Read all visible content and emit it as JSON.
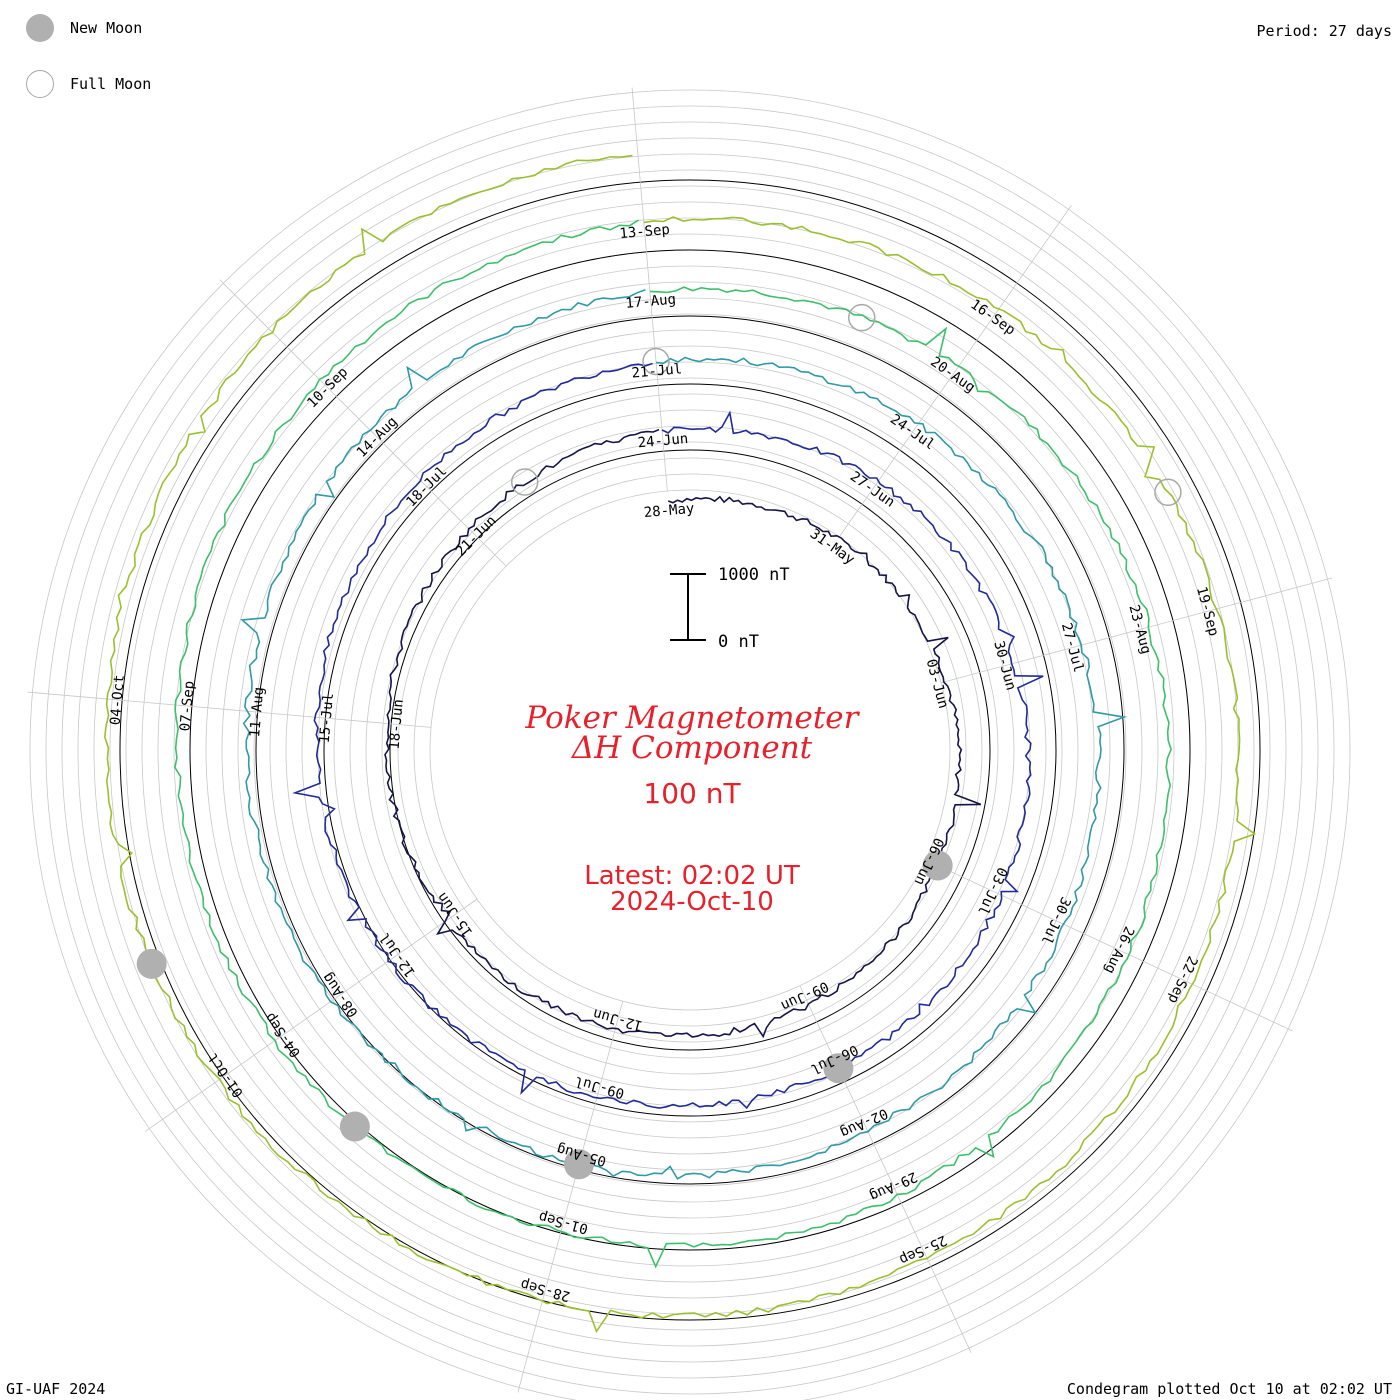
{
  "legend": {
    "new_moon_label": "New Moon",
    "full_moon_label": "Full Moon",
    "new_moon_color": "#b0b0b0",
    "full_moon_color": "#a8a8a8"
  },
  "period_label": "Period: 27 days",
  "credit": "GI-UAF 2024",
  "plotted_label": "Condegram plotted Oct 10 at 02:02 UT",
  "center": {
    "title_line1": "Poker Magnetometer",
    "title_line2": "ΔH Component",
    "scale_label": "100 nT",
    "latest_line1": "Latest: 02:02 UT",
    "latest_line2": "2024-Oct-10",
    "scale_bar_top": "1000 nT",
    "scale_bar_bottom": "0 nT",
    "accent_color": "#e8202a"
  },
  "chart_data": {
    "type": "line",
    "subtype": "spiral condegram",
    "period_days": 27,
    "scale_bar_nT": [
      0,
      1000
    ],
    "date_labels": [
      "28-May",
      "31-May",
      "03-Jun",
      "06-Jun",
      "09-Jun",
      "12-Jun",
      "15-Jun",
      "18-Jun",
      "21-Jun",
      "24-Jun",
      "27-Jun",
      "30-Jun",
      "03-Jul",
      "06-Jul",
      "09-Jul",
      "12-Jul",
      "15-Jul",
      "18-Jul",
      "21-Jul",
      "24-Jul",
      "27-Jul",
      "30-Jul",
      "02-Aug",
      "05-Aug",
      "08-Aug",
      "11-Aug",
      "14-Aug",
      "17-Aug",
      "20-Aug",
      "23-Aug",
      "26-Aug",
      "29-Aug",
      "01-Sep",
      "04-Sep",
      "07-Sep",
      "10-Sep",
      "13-Sep",
      "16-Sep",
      "19-Sep",
      "22-Sep",
      "25-Sep",
      "28-Sep",
      "01-Oct",
      "04-Oct"
    ],
    "series": [
      {
        "color": "#14144a",
        "start": "28-May"
      },
      {
        "color": "#1f2b9a",
        "start": "24-Jun"
      },
      {
        "color": "#2e9aa6",
        "start": "21-Jul"
      },
      {
        "color": "#3cc06a",
        "start": "17-Aug"
      },
      {
        "color": "#9ac02e",
        "start": "13-Sep"
      },
      {
        "color": "#c08a1e",
        "start": "13-Sep"
      },
      {
        "color": "#c0401e",
        "start": "16-Sep"
      },
      {
        "color": "#c01414",
        "start": "04-Oct"
      }
    ],
    "moon_markers": {
      "new_moon": [
        "06-Jun",
        "06-Jul",
        "05-Aug",
        "03-Sep",
        "02-Oct"
      ],
      "full_moon": [
        "22-Jun",
        "21-Jul",
        "19-Aug",
        "18-Sep"
      ]
    }
  }
}
